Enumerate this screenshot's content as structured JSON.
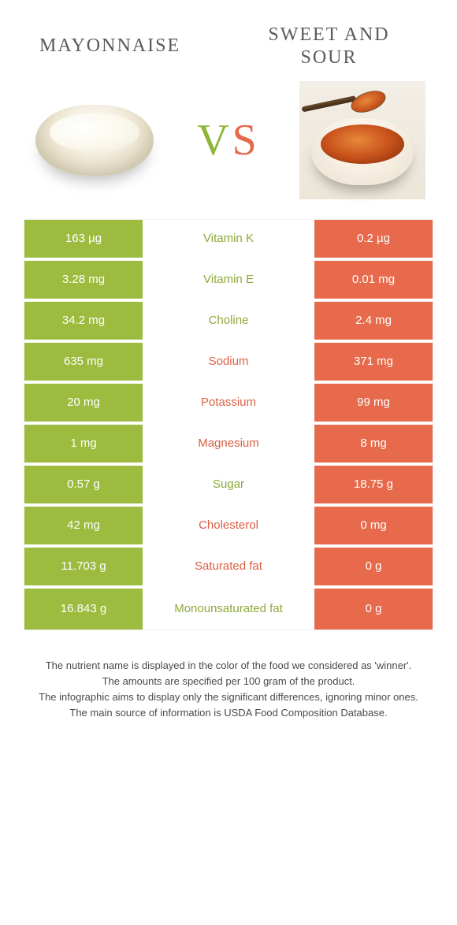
{
  "titles": {
    "left": "MAYONNAISE",
    "right_line1": "SWEET AND",
    "right_line2": "SOUR"
  },
  "vs": {
    "v": "V",
    "s": "S"
  },
  "colors": {
    "left_cell_bg": "#9dbb3f",
    "right_cell_bg": "#e66a4b",
    "left_text": "#8da93a",
    "right_text": "#da6045",
    "row_gap": "#ffffff"
  },
  "rows": [
    {
      "label": "Vitamin K",
      "left": "163 µg",
      "right": "0.2 µg",
      "winner": "left"
    },
    {
      "label": "Vitamin E",
      "left": "3.28 mg",
      "right": "0.01 mg",
      "winner": "left"
    },
    {
      "label": "Choline",
      "left": "34.2 mg",
      "right": "2.4 mg",
      "winner": "left"
    },
    {
      "label": "Sodium",
      "left": "635 mg",
      "right": "371 mg",
      "winner": "right"
    },
    {
      "label": "Potassium",
      "left": "20 mg",
      "right": "99 mg",
      "winner": "right"
    },
    {
      "label": "Magnesium",
      "left": "1 mg",
      "right": "8 mg",
      "winner": "right"
    },
    {
      "label": "Sugar",
      "left": "0.57 g",
      "right": "18.75 g",
      "winner": "left"
    },
    {
      "label": "Cholesterol",
      "left": "42 mg",
      "right": "0 mg",
      "winner": "right"
    },
    {
      "label": "Saturated fat",
      "left": "11.703 g",
      "right": "0 g",
      "winner": "right"
    },
    {
      "label": "Monounsaturated fat",
      "left": "16.843 g",
      "right": "0 g",
      "winner": "left"
    }
  ],
  "footnotes": [
    "The nutrient name is displayed in the color of the food we considered as 'winner'.",
    "The amounts are specified per 100 gram of the product.",
    "The infographic aims to display only the significant differences, ignoring minor ones.",
    "The main source of information is USDA Food Composition Database."
  ]
}
